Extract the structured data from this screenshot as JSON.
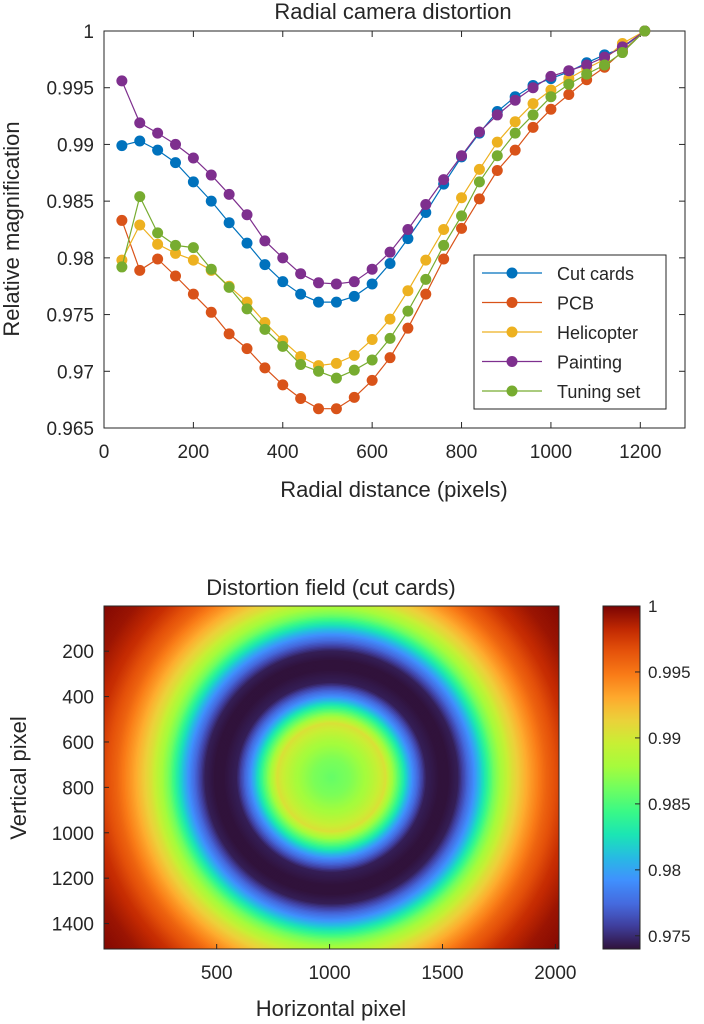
{
  "chart_data": [
    {
      "type": "line",
      "title": "Radial camera distortion",
      "xlabel": "Radial distance (pixels)",
      "ylabel": "Relative magnification",
      "xlim": [
        0,
        1300
      ],
      "ylim": [
        0.965,
        1.0
      ],
      "xticks": [
        0,
        200,
        400,
        600,
        800,
        1000,
        1200
      ],
      "xtick_labels": [
        "0",
        "200",
        "400",
        "600",
        "800",
        "1000",
        "1200"
      ],
      "yticks": [
        0.965,
        0.97,
        0.975,
        0.98,
        0.985,
        0.99,
        0.995,
        1.0
      ],
      "ytick_labels": [
        "0.965",
        "0.97",
        "0.975",
        "0.98",
        "0.985",
        "0.99",
        "0.995",
        "1"
      ],
      "grid": false,
      "legend_position": "right",
      "x": [
        40,
        80,
        120,
        160,
        200,
        240,
        280,
        320,
        360,
        400,
        440,
        480,
        520,
        560,
        600,
        640,
        680,
        720,
        760,
        800,
        840,
        880,
        920,
        960,
        1000,
        1040,
        1080,
        1120,
        1160,
        1210
      ],
      "series": [
        {
          "name": "Cut cards",
          "color": "#0072BD",
          "values": [
            0.9899,
            0.9903,
            0.9895,
            0.9884,
            0.9867,
            0.985,
            0.9831,
            0.9813,
            0.9794,
            0.9779,
            0.9768,
            0.9761,
            0.9761,
            0.9766,
            0.9777,
            0.9795,
            0.9817,
            0.984,
            0.9865,
            0.9889,
            0.991,
            0.9929,
            0.9942,
            0.9952,
            0.9958,
            0.9964,
            0.9972,
            0.9979,
            0.9985,
            1.0
          ]
        },
        {
          "name": "PCB",
          "color": "#D95319",
          "values": [
            0.9833,
            0.9789,
            0.9799,
            0.9784,
            0.9768,
            0.9752,
            0.9733,
            0.972,
            0.9703,
            0.9688,
            0.9676,
            0.9667,
            0.9667,
            0.9677,
            0.9692,
            0.9712,
            0.9738,
            0.9768,
            0.9799,
            0.9826,
            0.9852,
            0.9877,
            0.9895,
            0.9915,
            0.9931,
            0.9944,
            0.9957,
            0.9968,
            0.9982,
            1.0
          ]
        },
        {
          "name": "Helicopter",
          "color": "#EDB120",
          "values": [
            0.9798,
            0.9829,
            0.9812,
            0.9804,
            0.9798,
            0.9789,
            0.9775,
            0.9761,
            0.9743,
            0.9727,
            0.9713,
            0.9705,
            0.9707,
            0.9714,
            0.9728,
            0.9746,
            0.9771,
            0.9798,
            0.9825,
            0.9853,
            0.9878,
            0.9902,
            0.992,
            0.9936,
            0.9948,
            0.9958,
            0.9967,
            0.9975,
            0.9989,
            1.0
          ]
        },
        {
          "name": "Painting",
          "color": "#7E2F8E",
          "values": [
            0.9956,
            0.9919,
            0.991,
            0.99,
            0.9888,
            0.9873,
            0.9856,
            0.9838,
            0.9815,
            0.98,
            0.9786,
            0.9778,
            0.9777,
            0.9779,
            0.979,
            0.9805,
            0.9825,
            0.9847,
            0.9869,
            0.989,
            0.9911,
            0.9926,
            0.9939,
            0.995,
            0.996,
            0.9965,
            0.997,
            0.9977,
            0.9986,
            1.0
          ]
        },
        {
          "name": "Tuning set",
          "color": "#77AC30",
          "values": [
            0.9792,
            0.9854,
            0.9822,
            0.9811,
            0.9809,
            0.979,
            0.9774,
            0.9755,
            0.9737,
            0.9722,
            0.9706,
            0.97,
            0.9694,
            0.9701,
            0.971,
            0.9729,
            0.9753,
            0.9781,
            0.9811,
            0.9837,
            0.9867,
            0.989,
            0.991,
            0.9926,
            0.9942,
            0.9953,
            0.9962,
            0.997,
            0.9981,
            1.0
          ]
        }
      ]
    },
    {
      "type": "heatmap",
      "title": "Distortion field (cut cards)",
      "xlabel": "Horizontal pixel",
      "ylabel": "Vertical pixel",
      "xlim": [
        1,
        2016
      ],
      "ylim": [
        1,
        1512
      ],
      "xticks": [
        500,
        1000,
        1500,
        2000
      ],
      "xtick_labels": [
        "500",
        "1000",
        "1500",
        "2000"
      ],
      "yticks": [
        200,
        400,
        600,
        800,
        1000,
        1200,
        1400
      ],
      "ytick_labels": [
        "200",
        "400",
        "600",
        "800",
        "1000",
        "1200",
        "1400"
      ],
      "center": [
        1008,
        756
      ],
      "colormap": "turbo",
      "clim": [
        0.974,
        1.0
      ],
      "colorbar_ticks": [
        0.975,
        0.98,
        0.985,
        0.99,
        0.995,
        1.0
      ],
      "colorbar_tick_labels": [
        "0.975",
        "0.98",
        "0.985",
        "0.99",
        "0.995",
        "1"
      ]
    }
  ]
}
